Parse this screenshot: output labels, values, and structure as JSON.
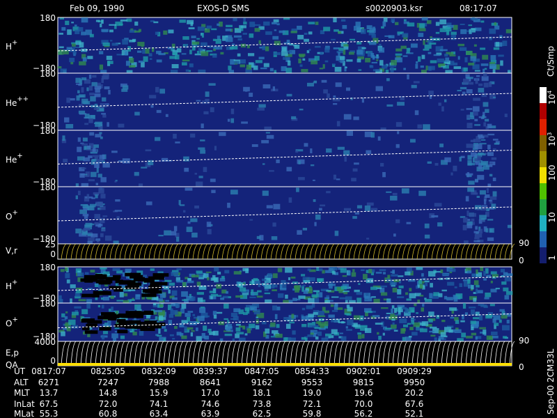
{
  "header": {
    "date": "Feb 09, 1990",
    "instrument": "EXOS-D SMS",
    "file": "s0020903.ksr",
    "time": "08:17:07"
  },
  "panels": [
    {
      "label": "H",
      "sup": "+",
      "ticks": [
        "180",
        "−180"
      ]
    },
    {
      "label": "He",
      "sup": "++",
      "ticks": [
        "180",
        "−180"
      ]
    },
    {
      "label": "He",
      "sup": "+",
      "ticks": [
        "180",
        "−180"
      ]
    },
    {
      "label": "O",
      "sup": "+",
      "ticks": [
        "180",
        "−180"
      ]
    },
    {
      "label": "V,r",
      "left_ticks": [
        "25",
        "0"
      ],
      "right_ticks": [
        "90",
        "0"
      ]
    },
    {
      "label": "H",
      "sup": "+",
      "ticks": [
        "180",
        "−180"
      ]
    },
    {
      "label": "O",
      "sup": "+",
      "ticks": [
        "180",
        "−180"
      ]
    },
    {
      "label": "E,p",
      "label2": "QA",
      "left_ticks": [
        "4000",
        "0"
      ],
      "right_ticks": [
        "90",
        "0"
      ]
    }
  ],
  "colorbar": {
    "unit": "Ct/Smp",
    "labels": [
      {
        "base": "10",
        "exp": "4"
      },
      {
        "base": "10",
        "exp": "3"
      },
      {
        "base": "100"
      },
      {
        "base": "10"
      },
      {
        "base": "1"
      }
    ]
  },
  "table": {
    "row_labels": [
      "UT",
      "ALT",
      "MLT",
      "InLat",
      "MLat"
    ],
    "columns": [
      [
        "0817:07",
        "6271",
        "13.7",
        "67.5",
        "55.3"
      ],
      [
        "0825:05",
        "7247",
        "14.8",
        "72.0",
        "60.8"
      ],
      [
        "0832:09",
        "7988",
        "15.9",
        "74.1",
        "63.4"
      ],
      [
        "0839:37",
        "8641",
        "17.0",
        "74.6",
        "63.9"
      ],
      [
        "0847:05",
        "9162",
        "18.1",
        "73.8",
        "62.5"
      ],
      [
        "0854:33",
        "9553",
        "19.0",
        "72.1",
        "59.8"
      ],
      [
        "0902:01",
        "9815",
        "19.6",
        "70.0",
        "56.2"
      ],
      [
        "0909:29",
        "9950",
        "20.2",
        "67.6",
        "52.1"
      ]
    ]
  },
  "footer": "Sep-00 2CM33L"
}
